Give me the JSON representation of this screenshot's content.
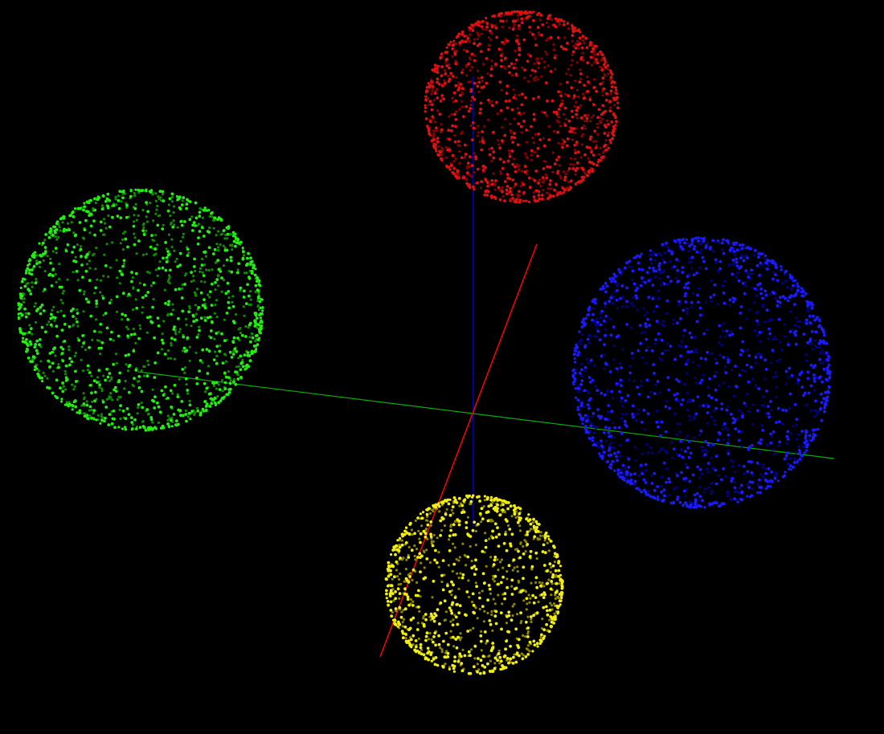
{
  "viewer": {
    "background_color": "#000000"
  },
  "axes": [
    {
      "name": "x-axis",
      "color": "#ff0000"
    },
    {
      "name": "y-axis",
      "color": "#00b400"
    },
    {
      "name": "z-axis",
      "color": "#0000ff"
    }
  ],
  "point_clouds": [
    {
      "name": "red-sphere-cloud",
      "shape": "sphere",
      "color": "#dd1111",
      "shade": "#8a0000"
    },
    {
      "name": "green-sphere-cloud",
      "shape": "sphere",
      "color": "#22ee11",
      "shade": "#118a00"
    },
    {
      "name": "blue-sphere-cloud",
      "shape": "sphere",
      "color": "#1a1aff",
      "shade": "#00008a"
    },
    {
      "name": "yellow-sphere-cloud",
      "shape": "sphere",
      "color": "#f2ee11",
      "shade": "#8a8600"
    }
  ]
}
